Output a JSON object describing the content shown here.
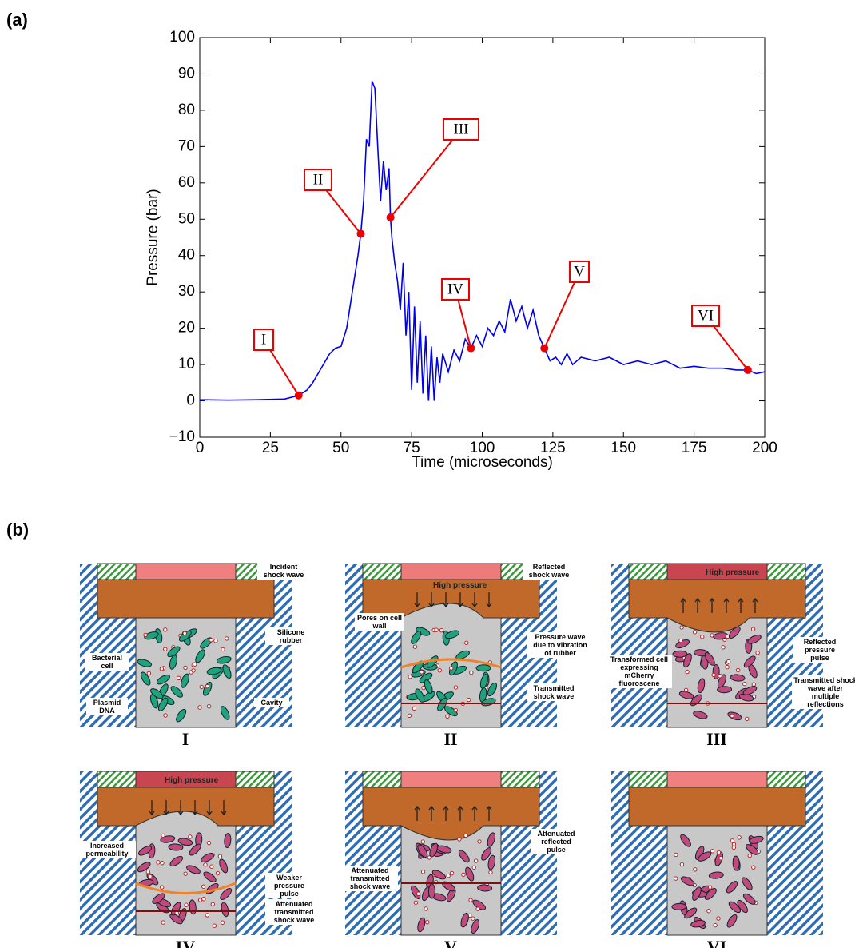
{
  "panel_a_label": "(a)",
  "chart_data": {
    "type": "line",
    "color": "#0000ee",
    "xlabel": "Time (microseconds)",
    "ylabel": "Pressure (bar)",
    "x": [
      0,
      10,
      20,
      30,
      35,
      38,
      40,
      43,
      46,
      48,
      50,
      52,
      54,
      56,
      57,
      58,
      59,
      60,
      61,
      62,
      63,
      64,
      65,
      66,
      67,
      67.5,
      68,
      69,
      70,
      71,
      72,
      73,
      74,
      75,
      76,
      77,
      78,
      79,
      80,
      81,
      82,
      83,
      84,
      85,
      86,
      88,
      90,
      92,
      94,
      96,
      98,
      100,
      102,
      104,
      106,
      108,
      110,
      112,
      114,
      116,
      118,
      120,
      122,
      124,
      126,
      128,
      130,
      132,
      135,
      140,
      145,
      150,
      155,
      160,
      165,
      170,
      175,
      180,
      185,
      190,
      194,
      197,
      200
    ],
    "values": [
      0.3,
      0.2,
      0.3,
      0.5,
      1.5,
      3,
      5,
      9,
      13,
      14.5,
      15,
      20,
      30,
      40,
      46,
      55,
      72,
      70,
      88,
      86,
      70,
      55,
      66,
      58,
      64,
      50.5,
      45,
      38,
      33,
      25,
      38,
      18,
      30,
      3,
      26,
      5,
      22,
      2,
      18,
      0,
      15,
      0,
      12,
      5,
      13,
      8,
      14,
      11,
      17,
      14.5,
      18,
      15,
      20,
      18,
      22,
      19,
      28,
      22,
      26,
      20,
      25,
      18,
      14.5,
      11,
      12,
      10,
      13,
      10,
      12,
      11,
      12,
      10,
      11,
      10,
      11,
      9,
      9.5,
      9,
      9,
      8.5,
      8.5,
      7.5,
      8
    ],
    "xlim": [
      0,
      200
    ],
    "ylim": [
      -10,
      100
    ],
    "xticks": [
      0,
      25,
      50,
      75,
      100,
      125,
      150,
      175,
      200
    ],
    "yticks": [
      {
        "value": -10,
        "label": "−10"
      },
      0,
      10,
      20,
      30,
      40,
      50,
      60,
      70,
      80,
      90,
      100
    ],
    "grid": false,
    "annotations": [
      {
        "label": "I",
        "x": 35,
        "y": 1.5
      },
      {
        "label": "II",
        "x": 57,
        "y": 46
      },
      {
        "label": "III",
        "x": 67.5,
        "y": 50.5
      },
      {
        "label": "IV",
        "x": 96,
        "y": 14.5
      },
      {
        "label": "V",
        "x": 122,
        "y": 14.5
      },
      {
        "label": "VI",
        "x": 194,
        "y": 8.5
      }
    ]
  },
  "panel_b_label": "(b)",
  "diagram": {
    "panels": [
      {
        "caption": "I",
        "notes": [
          "Incident shock wave",
          "Silicone rubber",
          "Bacterial cell",
          "Plasmid DNA",
          "Cavity"
        ]
      },
      {
        "caption": "II",
        "notes": [
          "Reflected shock wave",
          "High pressure",
          "Pores on cell wall",
          "Pressure wave due to vibration of rubber",
          "Transmitted shock wave"
        ]
      },
      {
        "caption": "III",
        "notes": [
          "High pressure",
          "Reflected pressure pulse",
          "Transformed cell expressing mCherry fluoroscene",
          "Transmitted shock wave after multiple reflections"
        ]
      },
      {
        "caption": "IV",
        "notes": [
          "High pressure",
          "Increased permeability",
          "Weaker pressure pulse",
          "Attenuated transmitted shock wave"
        ]
      },
      {
        "caption": "V",
        "notes": [
          "Attenuated reflected pulse",
          "Attenuated transmitted shock wave"
        ]
      },
      {
        "caption": "VI",
        "notes": []
      }
    ]
  }
}
